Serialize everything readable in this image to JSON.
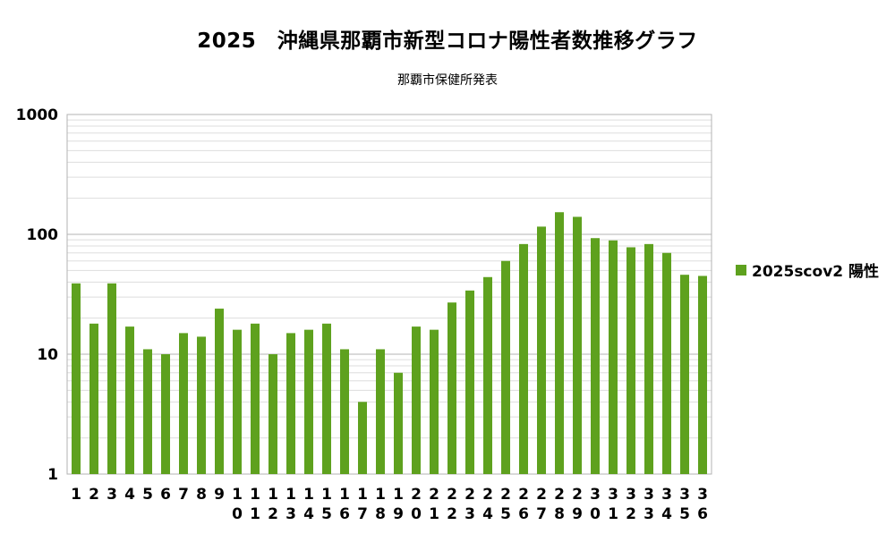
{
  "chart_data": {
    "type": "bar",
    "title": "2025　沖縄県那覇市新型コロナ陽性者数推移グラフ",
    "subtitle": "那覇市保健所発表",
    "xlabel": "",
    "ylabel": "",
    "yscale": "log",
    "ylim": [
      1,
      1000
    ],
    "yticks": [
      "1",
      "10",
      "100",
      "1000"
    ],
    "grid": true,
    "legend_position": "right",
    "categories": [
      "1",
      "2",
      "3",
      "4",
      "5",
      "6",
      "7",
      "8",
      "9",
      "10",
      "11",
      "12",
      "13",
      "14",
      "15",
      "16",
      "17",
      "18",
      "19",
      "20",
      "21",
      "22",
      "23",
      "24",
      "25",
      "26",
      "27",
      "28",
      "29",
      "30",
      "31",
      "32",
      "33",
      "34",
      "35",
      "36"
    ],
    "series": [
      {
        "name": "2025scov2 陽性",
        "color": "#5ea11e",
        "values": [
          39,
          18,
          39,
          17,
          11,
          10,
          15,
          14,
          24,
          16,
          18,
          10,
          15,
          16,
          18,
          11,
          4,
          11,
          7,
          17,
          16,
          27,
          34,
          44,
          60,
          83,
          116,
          153,
          140,
          93,
          89,
          78,
          83,
          70,
          46,
          45
        ]
      }
    ]
  }
}
